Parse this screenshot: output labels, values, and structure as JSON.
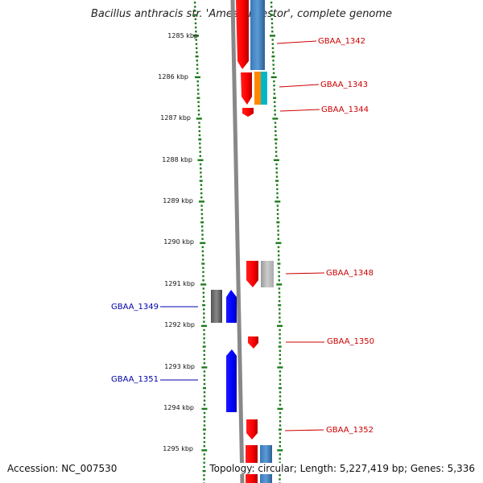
{
  "title": "Bacillus anthracis str. 'Ames Ancestor', complete genome",
  "ruler": [
    "1285 kbp",
    "1286 kbp",
    "1287 kbp",
    "1288 kbp",
    "1289 kbp",
    "1290 kbp",
    "1291 kbp",
    "1292 kbp",
    "1293 kbp",
    "1294 kbp",
    "1295 kbp"
  ],
  "genes": [
    {
      "name": "GBAA_1342",
      "strand": "forward",
      "color": "#cc0000"
    },
    {
      "name": "GBAA_1343",
      "strand": "forward",
      "color": "#cc0000"
    },
    {
      "name": "GBAA_1344",
      "strand": "forward",
      "color": "#cc0000"
    },
    {
      "name": "GBAA_1348",
      "strand": "forward",
      "color": "#cc0000"
    },
    {
      "name": "GBAA_1349",
      "strand": "reverse",
      "color": "#0000aa"
    },
    {
      "name": "GBAA_1350",
      "strand": "forward",
      "color": "#cc0000"
    },
    {
      "name": "GBAA_1351",
      "strand": "reverse",
      "color": "#0000aa"
    },
    {
      "name": "GBAA_1352",
      "strand": "forward",
      "color": "#cc0000"
    }
  ],
  "footer": {
    "accession": "Accession: NC_007530",
    "summary": "Topology: circular; Length: 5,227,419 bp; Genes: 5,336"
  }
}
